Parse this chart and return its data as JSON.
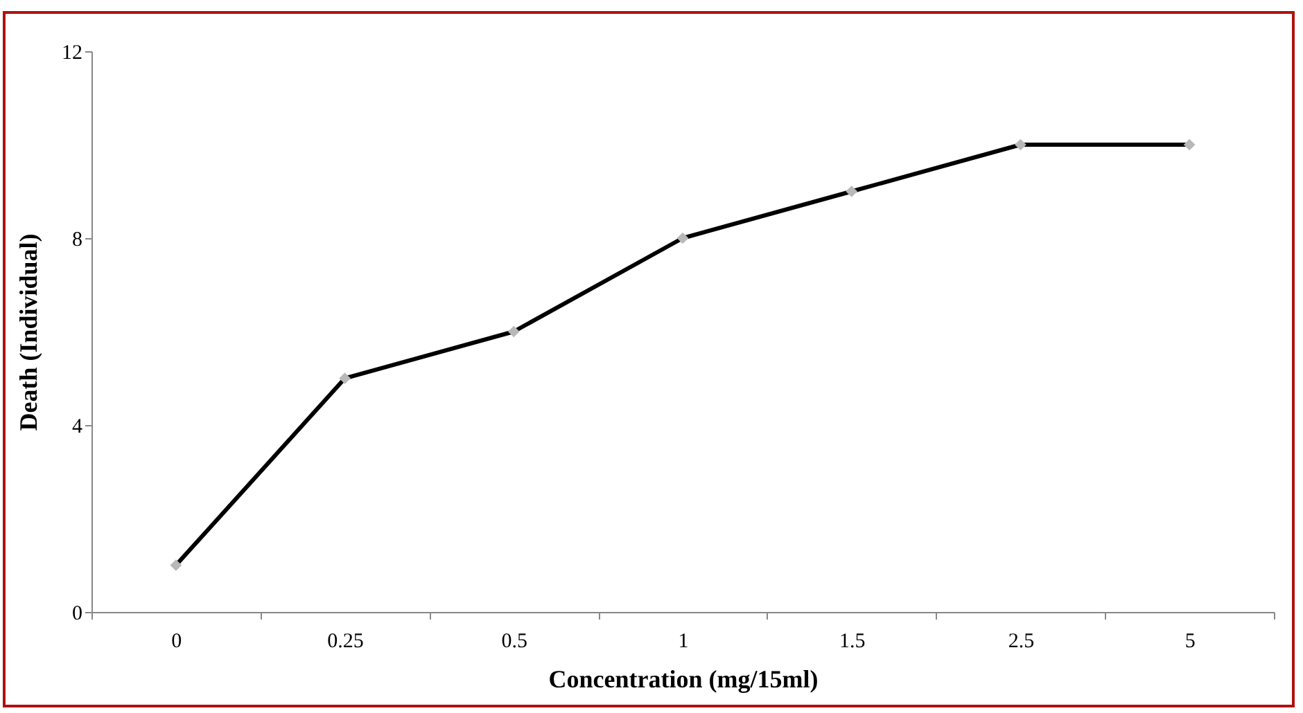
{
  "chart_data": {
    "type": "line",
    "xlabel": "Concentration (mg/15ml)",
    "ylabel": "Death (Individual)",
    "categories": [
      "0",
      "0.25",
      "0.5",
      "1",
      "1.5",
      "2.5",
      "5"
    ],
    "series": [
      {
        "color": "#000000",
        "values": [
          1,
          5,
          6,
          8,
          9,
          10,
          10
        ]
      }
    ],
    "ylim": [
      0,
      12
    ],
    "yticks": [
      0,
      4,
      8,
      12
    ],
    "grid": false,
    "marker": "diamond",
    "line_style": "solid"
  }
}
